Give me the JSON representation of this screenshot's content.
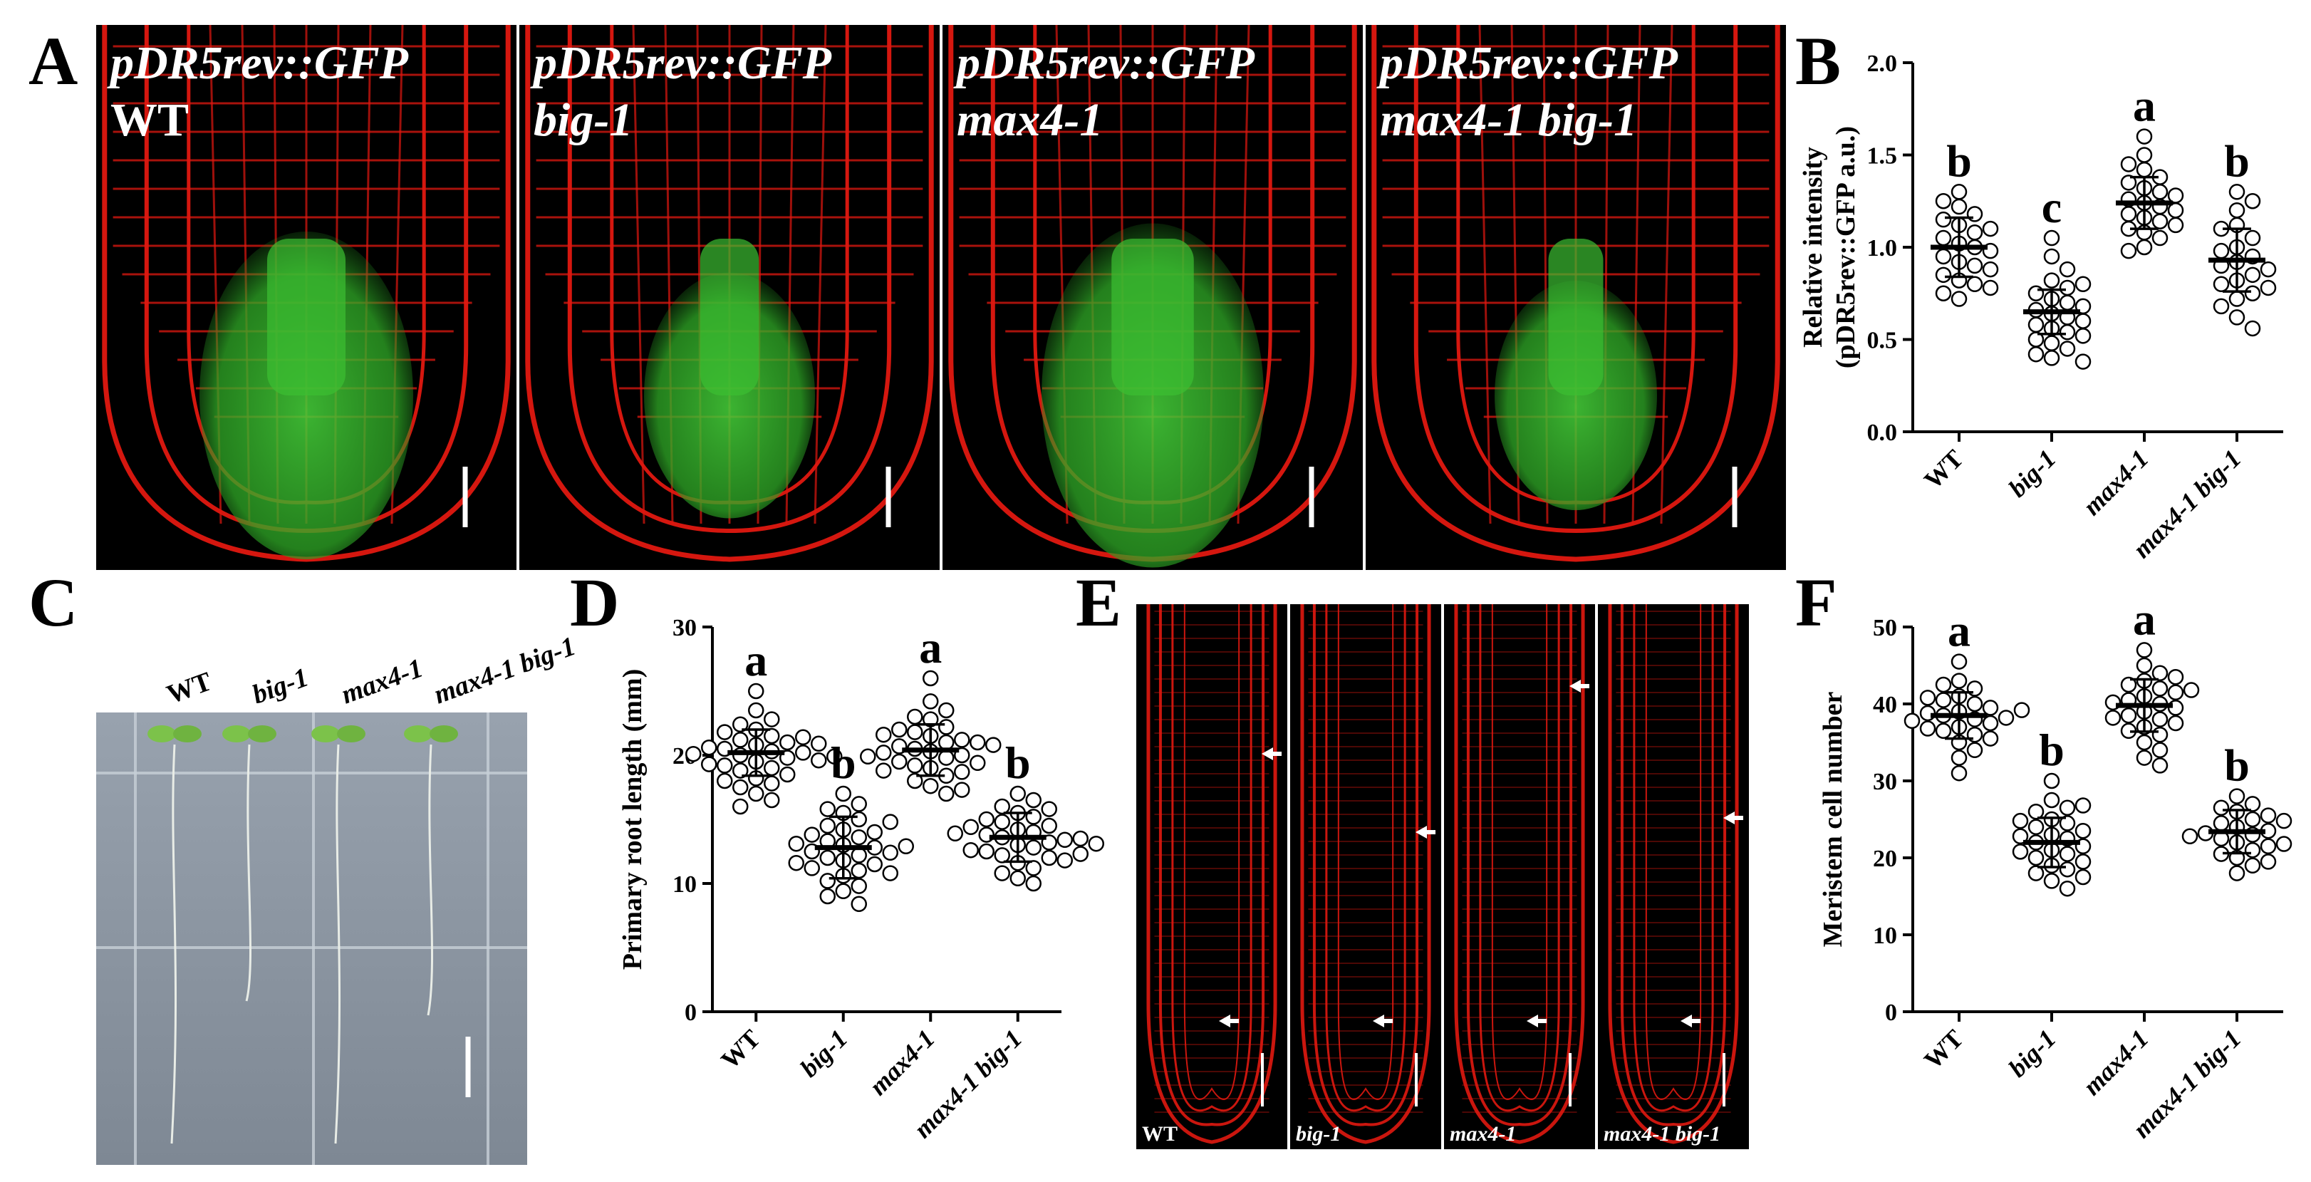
{
  "panels": {
    "A": {
      "letter": "A",
      "images": [
        {
          "line1": "pDR5rev::GFP",
          "line2": "WT"
        },
        {
          "line1": "pDR5rev::GFP",
          "line2": "big-1"
        },
        {
          "line1": "pDR5rev::GFP",
          "line2": "max4-1"
        },
        {
          "line1": "pDR5rev::GFP",
          "line2": "max4-1 big-1"
        }
      ]
    },
    "C": {
      "letter": "C",
      "labels": [
        "WT",
        "big-1",
        "max4-1",
        "max4-1 big-1"
      ]
    },
    "E": {
      "letter": "E",
      "labels": [
        "WT",
        "big-1",
        "max4-1",
        "max4-1 big-1"
      ]
    }
  },
  "colors": {
    "membrane_red": "#e01810",
    "gfp_green": "#38c030",
    "plate_gray": "#8a94a0"
  },
  "chart_data": [
    {
      "panel": "B",
      "type": "scatter",
      "ylabel_line1": "Relative intensity",
      "ylabel_line2": "(pDR5rev::GFP a.u.)",
      "ylim": [
        0,
        2.0
      ],
      "yticks": [
        "0.0",
        "0.5",
        "1.0",
        "1.5",
        "2.0"
      ],
      "categories": [
        "WT",
        "big-1",
        "max4-1",
        "max4-1 big-1"
      ],
      "means": [
        1.0,
        0.65,
        1.24,
        0.93
      ],
      "sd": [
        0.16,
        0.12,
        0.14,
        0.17
      ],
      "letters": [
        "b",
        "c",
        "a",
        "b"
      ],
      "points": [
        [
          1.22,
          1.18,
          1.12,
          1.08,
          1.05,
          1.02,
          1.0,
          0.98,
          0.95,
          0.92,
          0.9,
          0.88,
          0.85,
          0.82,
          0.8,
          0.78,
          0.75,
          0.72,
          1.1,
          1.15,
          1.3,
          1.25
        ],
        [
          0.95,
          0.88,
          0.82,
          0.78,
          0.75,
          0.72,
          0.7,
          0.68,
          0.66,
          0.64,
          0.62,
          0.6,
          0.58,
          0.56,
          0.54,
          0.52,
          0.5,
          0.48,
          0.45,
          0.42,
          0.4,
          0.38,
          0.8,
          1.05
        ],
        [
          1.6,
          1.5,
          1.42,
          1.38,
          1.35,
          1.32,
          1.3,
          1.28,
          1.26,
          1.24,
          1.22,
          1.2,
          1.18,
          1.16,
          1.14,
          1.12,
          1.1,
          1.08,
          1.05,
          1.0,
          0.98,
          1.45
        ],
        [
          1.3,
          1.25,
          1.2,
          1.12,
          1.05,
          1.0,
          0.98,
          0.95,
          0.92,
          0.9,
          0.88,
          0.85,
          0.82,
          0.8,
          0.78,
          0.75,
          0.72,
          0.68,
          0.62,
          0.56,
          1.1
        ]
      ]
    },
    {
      "panel": "D",
      "type": "scatter",
      "ylabel": "Primary root length (mm)",
      "ylim": [
        0,
        30
      ],
      "yticks": [
        "0",
        "10",
        "20",
        "30"
      ],
      "categories": [
        "WT",
        "big-1",
        "max4-1",
        "max4-1 big-1"
      ],
      "means": [
        20.2,
        12.8,
        20.4,
        13.6
      ],
      "sd": [
        1.8,
        2.4,
        2.0,
        1.9
      ],
      "letters": [
        "a",
        "b",
        "a",
        "b"
      ],
      "points": [
        [
          25.0,
          23.5,
          22.8,
          22.0,
          21.5,
          21.2,
          21.0,
          20.8,
          20.5,
          20.3,
          20.2,
          20.0,
          19.8,
          19.5,
          19.2,
          19.0,
          18.8,
          18.5,
          18.2,
          17.8,
          17.5,
          17.0,
          16.5,
          16.0,
          21.8,
          20.6,
          19.6,
          22.4,
          18.0,
          20.9,
          19.3,
          21.4,
          20.1,
          19.9
        ],
        [
          17.0,
          16.2,
          15.5,
          15.0,
          14.5,
          14.2,
          14.0,
          13.6,
          13.3,
          13.0,
          12.8,
          12.5,
          12.2,
          12.0,
          11.8,
          11.5,
          11.2,
          11.0,
          10.6,
          10.2,
          9.8,
          9.4,
          9.0,
          8.4,
          13.8,
          12.4,
          11.6,
          14.8,
          10.8,
          13.1,
          12.9,
          15.8
        ],
        [
          26.0,
          24.2,
          23.5,
          22.8,
          22.2,
          21.8,
          21.5,
          21.2,
          21.0,
          20.7,
          20.5,
          20.3,
          20.0,
          19.8,
          19.5,
          19.2,
          19.0,
          18.7,
          18.4,
          18.0,
          17.6,
          17.0,
          23.0,
          21.0,
          20.2,
          19.4,
          22.0,
          18.8,
          20.8,
          19.9,
          21.6,
          17.3
        ],
        [
          17.0,
          16.5,
          16.0,
          15.5,
          15.2,
          14.8,
          14.5,
          14.2,
          14.0,
          13.8,
          13.6,
          13.4,
          13.2,
          13.0,
          12.8,
          12.5,
          12.2,
          12.0,
          11.6,
          11.2,
          10.8,
          10.4,
          10.0,
          14.4,
          13.5,
          12.6,
          15.8,
          11.8,
          13.9,
          12.3,
          15.0,
          13.1
        ]
      ]
    },
    {
      "panel": "F",
      "type": "scatter",
      "ylabel": "Meristem cell number",
      "ylim": [
        0,
        50
      ],
      "yticks": [
        "0",
        "10",
        "20",
        "30",
        "40",
        "50"
      ],
      "categories": [
        "WT",
        "big-1",
        "max4-1",
        "max4-1 big-1"
      ],
      "means": [
        38.5,
        22.0,
        39.8,
        23.4
      ],
      "sd": [
        3.0,
        3.2,
        3.4,
        2.8
      ],
      "letters": [
        "a",
        "b",
        "a",
        "b"
      ],
      "points": [
        [
          45.5,
          43.0,
          42.0,
          41.0,
          40.5,
          40.0,
          39.5,
          39.0,
          38.8,
          38.5,
          38.2,
          38.0,
          37.5,
          37.0,
          36.5,
          36.0,
          35.5,
          35.0,
          34.0,
          33.0,
          31.0,
          40.8,
          37.8,
          39.2,
          36.8,
          42.5
        ],
        [
          30.0,
          27.5,
          26.5,
          26.0,
          25.0,
          24.5,
          24.0,
          23.5,
          23.0,
          22.5,
          22.0,
          21.5,
          21.0,
          20.5,
          20.0,
          19.5,
          19.0,
          18.5,
          18.0,
          17.5,
          17.0,
          16.0,
          24.8,
          22.8,
          20.8,
          26.8
        ],
        [
          47.0,
          45.0,
          44.0,
          43.0,
          42.5,
          42.0,
          41.5,
          41.0,
          40.5,
          40.0,
          39.5,
          39.0,
          38.5,
          38.0,
          37.5,
          37.0,
          36.0,
          35.0,
          34.0,
          33.0,
          32.0,
          43.5,
          40.2,
          38.2,
          36.5,
          41.8
        ],
        [
          28.0,
          27.0,
          26.5,
          26.0,
          25.0,
          24.5,
          24.0,
          23.5,
          23.0,
          22.5,
          22.0,
          21.5,
          21.0,
          20.5,
          20.0,
          19.5,
          19.0,
          18.0,
          25.5,
          23.2,
          21.8,
          24.8,
          22.8
        ]
      ]
    }
  ]
}
